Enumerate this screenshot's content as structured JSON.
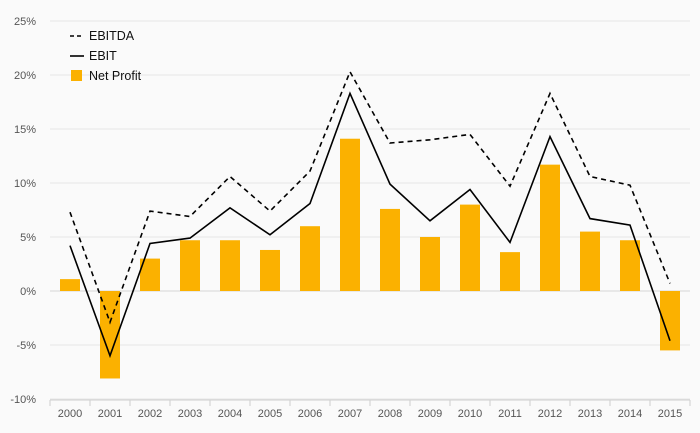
{
  "chart_data": {
    "type": "bar",
    "categories": [
      "2000",
      "2001",
      "2002",
      "2003",
      "2004",
      "2005",
      "2006",
      "2007",
      "2008",
      "2009",
      "2010",
      "2011",
      "2012",
      "2013",
      "2014",
      "2015"
    ],
    "series": [
      {
        "name": "EBITDA",
        "type": "line",
        "style": "dashed",
        "color": "#000000",
        "values": [
          7.3,
          -2.9,
          7.4,
          6.9,
          10.6,
          7.4,
          11.1,
          20.3,
          13.7,
          14.0,
          14.5,
          9.7,
          18.3,
          10.6,
          9.8,
          0.7
        ]
      },
      {
        "name": "EBIT",
        "type": "line",
        "style": "solid",
        "color": "#000000",
        "values": [
          4.2,
          -6.0,
          4.4,
          4.9,
          7.7,
          5.2,
          8.1,
          18.3,
          9.9,
          6.5,
          9.4,
          4.5,
          14.3,
          6.7,
          6.1,
          -4.6
        ]
      },
      {
        "name": "Net Profit",
        "type": "bar",
        "color": "#FBB100",
        "values": [
          1.1,
          -8.1,
          3.0,
          4.7,
          4.7,
          3.8,
          6.0,
          14.1,
          7.6,
          5.0,
          8.0,
          3.6,
          11.7,
          5.5,
          4.7,
          -5.5
        ]
      }
    ],
    "y_ticks": [
      "-10%",
      "-5%",
      "0%",
      "5%",
      "10%",
      "15%",
      "20%",
      "25%"
    ],
    "ylim": [
      -10,
      25
    ],
    "grid": "horizontal",
    "legend": "top-left",
    "title": "",
    "xlabel": "",
    "ylabel": ""
  }
}
